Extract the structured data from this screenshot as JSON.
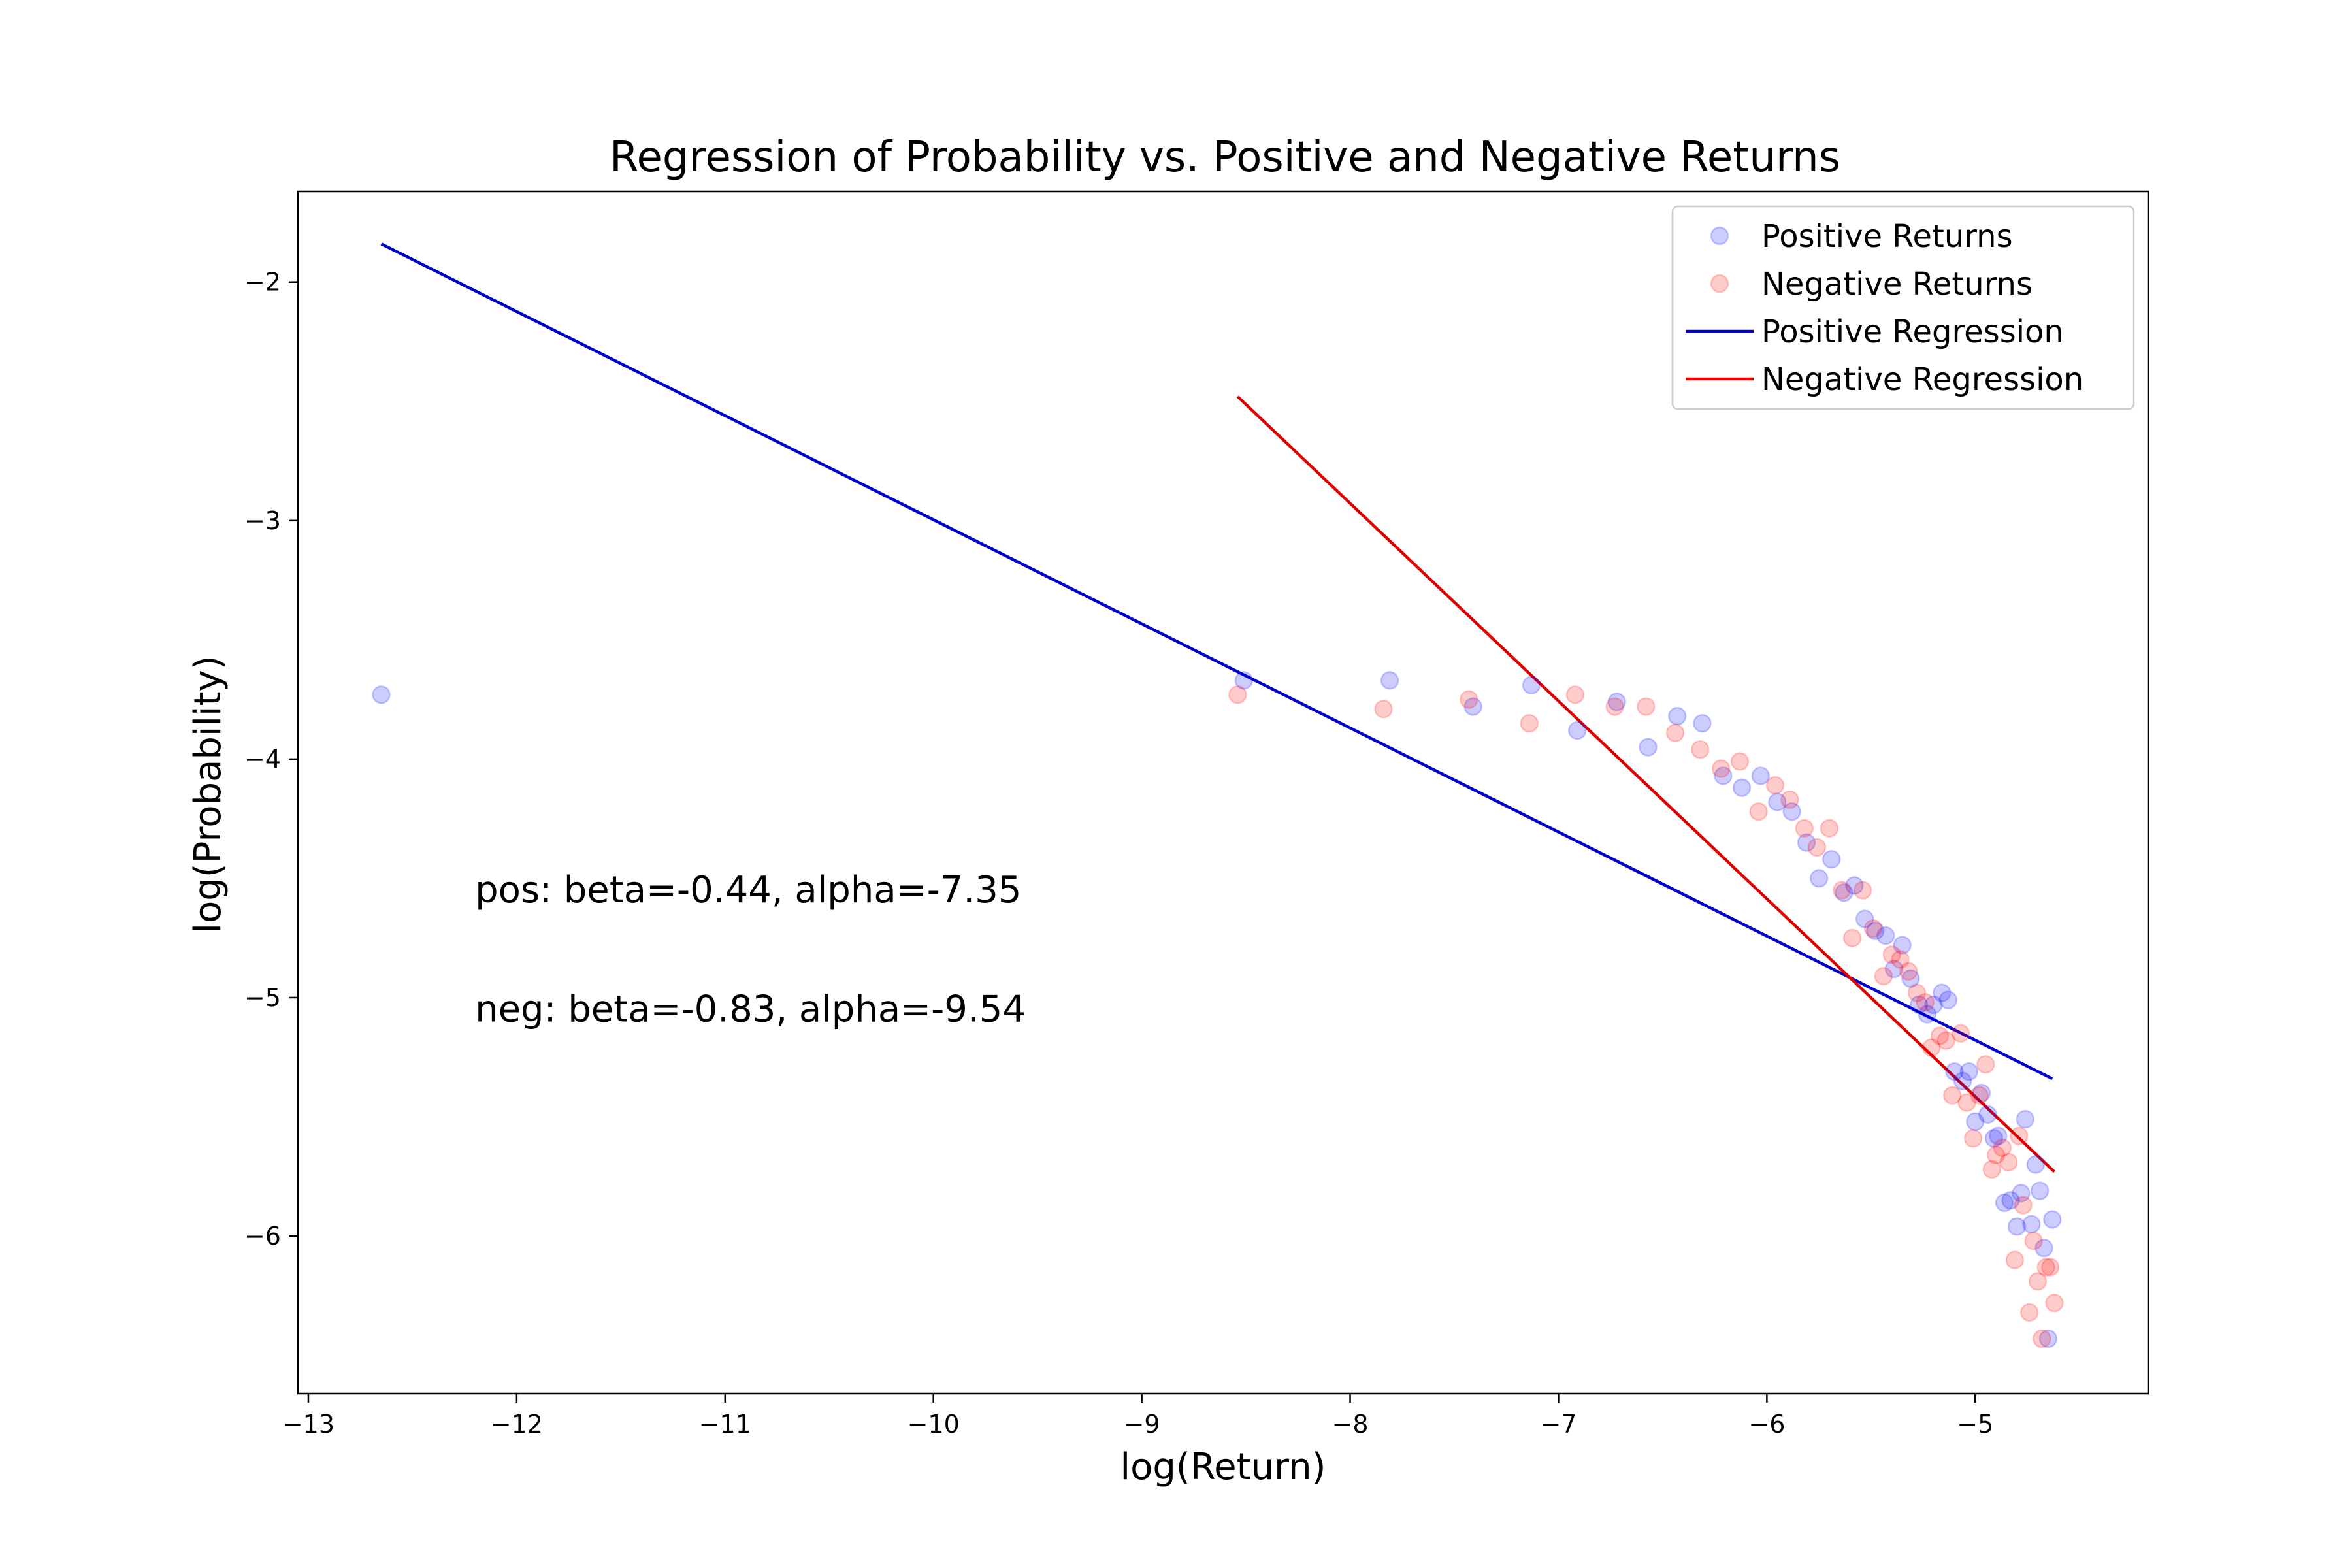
{
  "chart_data": {
    "type": "scatter",
    "title": "Regression of Probability vs. Positive and Negative Returns",
    "xlabel": "log(Return)",
    "ylabel": "log(Probability)",
    "xlim": [
      -13.05,
      -4.17
    ],
    "ylim": [
      -6.66,
      -1.62
    ],
    "x_ticks": [
      -13,
      -12,
      -11,
      -10,
      -9,
      -8,
      -7,
      -6,
      -5
    ],
    "y_ticks": [
      -6,
      -5,
      -4,
      -3,
      -2
    ],
    "x_tick_labels": [
      "−13",
      "−12",
      "−11",
      "−10",
      "−9",
      "−8",
      "−7",
      "−6",
      "−5"
    ],
    "y_tick_labels": [
      "−6",
      "−5",
      "−4",
      "−3",
      "−2"
    ],
    "grid": false,
    "legend_position": "top-right",
    "legend": [
      {
        "label": "Positive Returns",
        "kind": "marker",
        "color": "#0000ff"
      },
      {
        "label": "Negative Returns",
        "kind": "marker",
        "color": "#ff0000"
      },
      {
        "label": "Positive Regression",
        "kind": "line",
        "color": "#0000cc"
      },
      {
        "label": "Negative Regression",
        "kind": "line",
        "color": "#dd0000"
      }
    ],
    "annotations": [
      {
        "text": "pos: beta=-0.44, alpha=-7.35",
        "x": -12.2,
        "y": -4.6
      },
      {
        "text": "neg: beta=-0.83, alpha=-9.54",
        "x": -12.2,
        "y": -5.1
      }
    ],
    "series": [
      {
        "name": "Positive Returns",
        "kind": "scatter",
        "color": "#0000ff",
        "points": [
          [
            -12.65,
            -3.73
          ],
          [
            -8.51,
            -3.67
          ],
          [
            -7.81,
            -3.67
          ],
          [
            -7.41,
            -3.78
          ],
          [
            -7.13,
            -3.69
          ],
          [
            -6.91,
            -3.88
          ],
          [
            -6.72,
            -3.76
          ],
          [
            -6.57,
            -3.95
          ],
          [
            -6.43,
            -3.82
          ],
          [
            -6.31,
            -3.85
          ],
          [
            -6.21,
            -4.07
          ],
          [
            -6.12,
            -4.12
          ],
          [
            -6.03,
            -4.07
          ],
          [
            -5.95,
            -4.18
          ],
          [
            -5.88,
            -4.22
          ],
          [
            -5.81,
            -4.35
          ],
          [
            -5.75,
            -4.5
          ],
          [
            -5.69,
            -4.42
          ],
          [
            -5.63,
            -4.56
          ],
          [
            -5.58,
            -4.53
          ],
          [
            -5.53,
            -4.67
          ],
          [
            -5.48,
            -4.72
          ],
          [
            -5.43,
            -4.74
          ],
          [
            -5.39,
            -4.88
          ],
          [
            -5.35,
            -4.78
          ],
          [
            -5.31,
            -4.92
          ],
          [
            -5.27,
            -5.03
          ],
          [
            -5.23,
            -5.07
          ],
          [
            -5.2,
            -5.03
          ],
          [
            -5.16,
            -4.98
          ],
          [
            -5.13,
            -5.01
          ],
          [
            -5.1,
            -5.31
          ],
          [
            -5.06,
            -5.35
          ],
          [
            -5.03,
            -5.31
          ],
          [
            -5.0,
            -5.52
          ],
          [
            -4.97,
            -5.4
          ],
          [
            -4.94,
            -5.49
          ],
          [
            -4.91,
            -5.59
          ],
          [
            -4.89,
            -5.58
          ],
          [
            -4.86,
            -5.86
          ],
          [
            -4.83,
            -5.85
          ],
          [
            -4.8,
            -5.96
          ],
          [
            -4.78,
            -5.82
          ],
          [
            -4.76,
            -5.51
          ],
          [
            -4.73,
            -5.95
          ],
          [
            -4.71,
            -5.7
          ],
          [
            -4.69,
            -5.81
          ],
          [
            -4.67,
            -6.05
          ],
          [
            -4.65,
            -6.43
          ],
          [
            -4.63,
            -5.93
          ]
        ]
      },
      {
        "name": "Negative Returns",
        "kind": "scatter",
        "color": "#ff0000",
        "points": [
          [
            -8.54,
            -3.73
          ],
          [
            -7.84,
            -3.79
          ],
          [
            -7.43,
            -3.75
          ],
          [
            -7.14,
            -3.85
          ],
          [
            -6.92,
            -3.73
          ],
          [
            -6.73,
            -3.78
          ],
          [
            -6.58,
            -3.78
          ],
          [
            -6.44,
            -3.89
          ],
          [
            -6.32,
            -3.96
          ],
          [
            -6.22,
            -4.04
          ],
          [
            -6.13,
            -4.01
          ],
          [
            -6.04,
            -4.22
          ],
          [
            -5.96,
            -4.11
          ],
          [
            -5.89,
            -4.17
          ],
          [
            -5.82,
            -4.29
          ],
          [
            -5.76,
            -4.37
          ],
          [
            -5.7,
            -4.29
          ],
          [
            -5.64,
            -4.55
          ],
          [
            -5.59,
            -4.75
          ],
          [
            -5.54,
            -4.55
          ],
          [
            -5.49,
            -4.71
          ],
          [
            -5.44,
            -4.91
          ],
          [
            -5.4,
            -4.82
          ],
          [
            -5.36,
            -4.84
          ],
          [
            -5.32,
            -4.89
          ],
          [
            -5.28,
            -4.98
          ],
          [
            -5.24,
            -5.02
          ],
          [
            -5.21,
            -5.21
          ],
          [
            -5.17,
            -5.16
          ],
          [
            -5.14,
            -5.18
          ],
          [
            -5.11,
            -5.41
          ],
          [
            -5.07,
            -5.15
          ],
          [
            -5.04,
            -5.44
          ],
          [
            -5.01,
            -5.59
          ],
          [
            -4.98,
            -5.41
          ],
          [
            -4.95,
            -5.28
          ],
          [
            -4.92,
            -5.72
          ],
          [
            -4.9,
            -5.66
          ],
          [
            -4.87,
            -5.63
          ],
          [
            -4.84,
            -5.69
          ],
          [
            -4.81,
            -6.1
          ],
          [
            -4.79,
            -5.58
          ],
          [
            -4.77,
            -5.87
          ],
          [
            -4.74,
            -6.32
          ],
          [
            -4.72,
            -6.02
          ],
          [
            -4.7,
            -6.19
          ],
          [
            -4.68,
            -6.43
          ],
          [
            -4.66,
            -6.13
          ],
          [
            -4.64,
            -6.13
          ],
          [
            -4.62,
            -6.28
          ]
        ]
      },
      {
        "name": "Positive Regression",
        "kind": "line",
        "color": "#0000cc",
        "points": [
          [
            -12.65,
            -1.84
          ],
          [
            -4.63,
            -5.34
          ]
        ]
      },
      {
        "name": "Negative Regression",
        "kind": "line",
        "color": "#dd0000",
        "points": [
          [
            -8.54,
            -2.48
          ],
          [
            -4.62,
            -5.73
          ]
        ]
      }
    ]
  }
}
